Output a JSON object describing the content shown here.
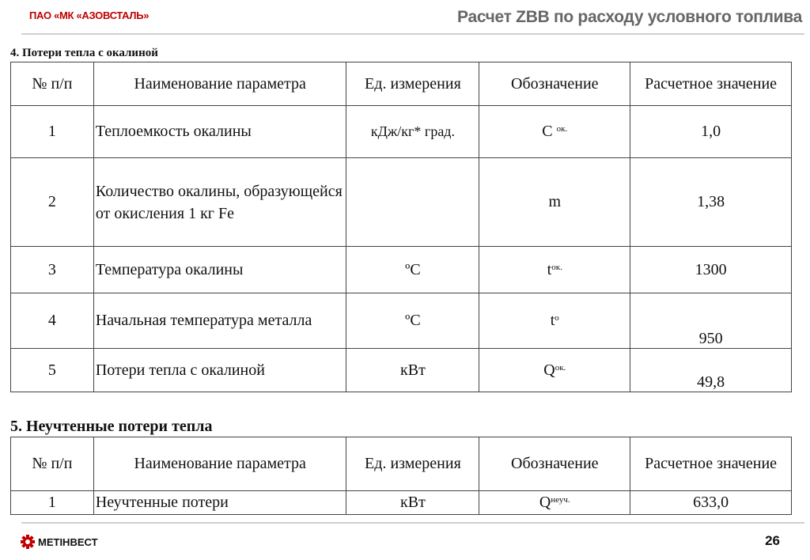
{
  "header": {
    "company": "ПАО «МК «АЗОВСТАЛЬ»",
    "title": "Расчет ZBB по расходу условного топлива"
  },
  "section4": {
    "title": "4. Потери тепла с окалиной",
    "headers": [
      "№ п/п",
      "Наименование параметра",
      "Ед. измерения",
      "Обозначение",
      "Расчетное значение"
    ],
    "rows": [
      {
        "n": "1",
        "name": "Теплоемкость окалины",
        "unit": "кДж/кг* град.",
        "sym": "С",
        "sub": "ок.",
        "value": "1,0"
      },
      {
        "n": "2",
        "name": "Количество окалины, образующейся от окисления 1 кг Fe",
        "unit": "",
        "sym": "m",
        "sub": "",
        "value": "1,38"
      },
      {
        "n": "3",
        "name": "Температура окалины",
        "unit": "ºС",
        "sym": "t",
        "sub": "ок.",
        "value": "1300"
      },
      {
        "n": "4",
        "name": "Начальная температура металла",
        "unit": "ºС",
        "sym": "t",
        "sub": "о",
        "value": "950"
      },
      {
        "n": "5",
        "name": "Потери тепла с окалиной",
        "unit": "кВт",
        "sym": "Q",
        "sub": "ок.",
        "value": "49,8"
      }
    ]
  },
  "section5": {
    "title": "5. Неучтенные потери тепла",
    "headers": [
      "№ п/п",
      "Наименование параметра",
      "Ед. измерения",
      "Обозначение",
      "Расчетное значение"
    ],
    "rows": [
      {
        "n": "1",
        "name": "Неучтенные потери",
        "unit": "кВт",
        "sym": "Q",
        "sub": "неуч.",
        "value": "633,0"
      }
    ]
  },
  "footer": {
    "logo": "МЕТІНВЕСТ",
    "page": "26",
    "logo_color": "#c00000"
  }
}
